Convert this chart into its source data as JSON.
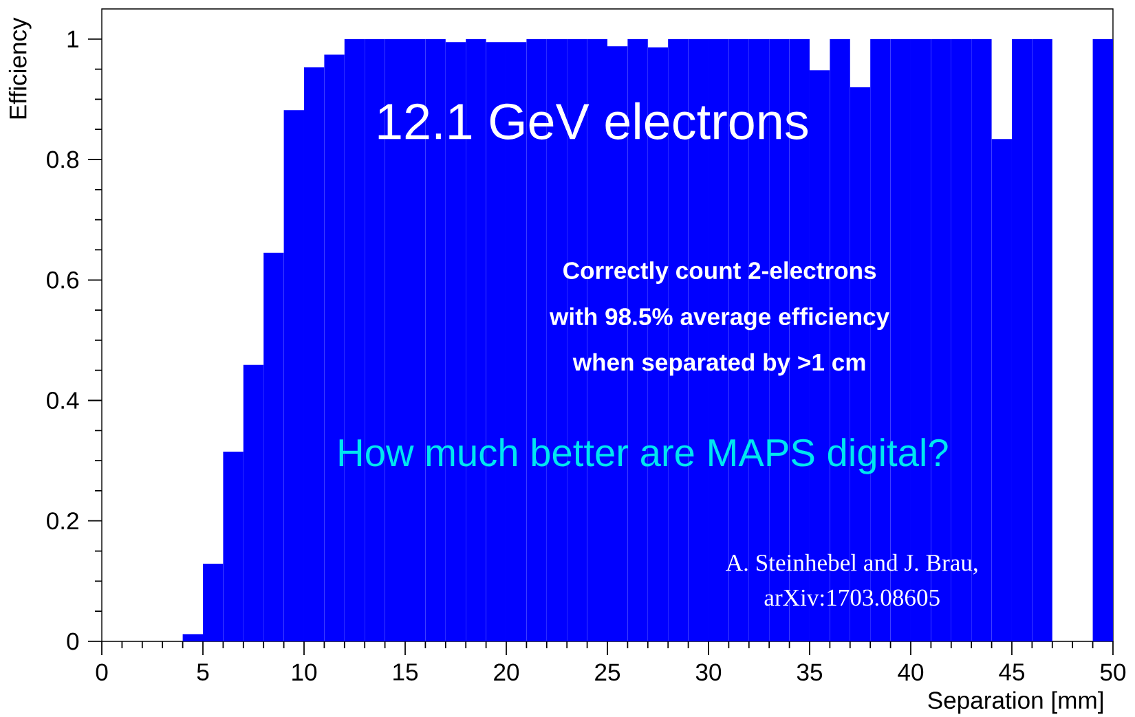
{
  "chart_data": {
    "type": "histogram",
    "xlabel": "Separation [mm]",
    "ylabel": "Efficiency",
    "bins": [
      0,
      1,
      2,
      3,
      4,
      5,
      6,
      7,
      8,
      9,
      10,
      11,
      12,
      13,
      14,
      15,
      16,
      17,
      18,
      19,
      20,
      21,
      22,
      23,
      24,
      25,
      26,
      27,
      28,
      29,
      30,
      31,
      32,
      33,
      34,
      35,
      36,
      37,
      38,
      39,
      40,
      41,
      42,
      43,
      44,
      45,
      46,
      47,
      48,
      49,
      50
    ],
    "values": [
      0,
      0,
      0,
      0,
      0.012,
      0.129,
      0.315,
      0.459,
      0.645,
      0.882,
      0.953,
      0.974,
      1,
      1,
      1,
      1,
      1,
      0.995,
      1,
      0.995,
      0.995,
      1,
      1,
      1,
      1,
      0.988,
      1,
      0.986,
      1,
      1,
      1,
      1,
      1,
      1,
      1,
      0.948,
      1,
      0.92,
      1,
      1,
      1,
      1,
      1,
      1,
      0.834,
      1,
      1,
      0,
      0,
      1
    ],
    "color": "#0000ff",
    "xlim": [
      0,
      50
    ],
    "ylim": [
      0,
      1.05
    ],
    "xticks": [
      0,
      5,
      10,
      15,
      20,
      25,
      30,
      35,
      40,
      45,
      50
    ],
    "yticks": [
      0,
      0.2,
      0.4,
      0.6,
      0.8,
      1
    ],
    "annotations": [
      "12.1 GeV electrons",
      "Correctly count 2-electrons",
      "with 98.5% average  efficiency",
      "when separated by >1 cm",
      "How much better are MAPS digital?",
      "A. Steinhebel and J. Brau,",
      "arXiv:1703.08605"
    ]
  }
}
